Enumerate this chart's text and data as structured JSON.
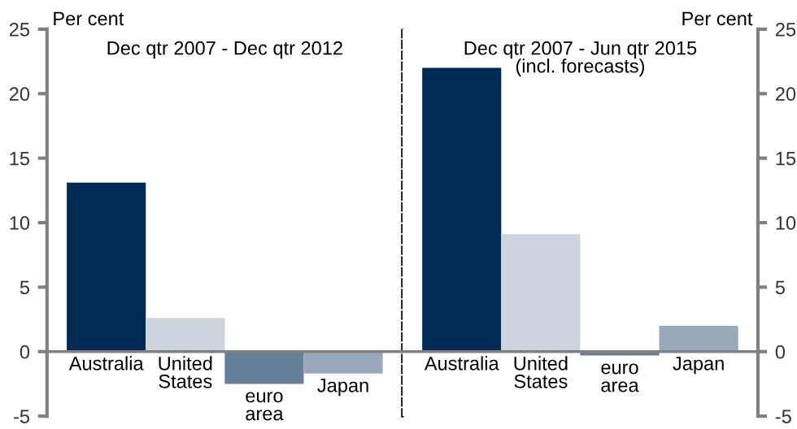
{
  "chart_data": [
    {
      "type": "bar",
      "title": "Dec qtr 2007 - Dec qtr 2012",
      "ylabel": "Per cent",
      "categories": [
        "Australia",
        "United\nStates",
        "euro\narea",
        "Japan"
      ],
      "values": [
        13.1,
        2.6,
        -2.5,
        -1.7
      ],
      "colors": [
        "#002b55",
        "#cdd4de",
        "#657f98",
        "#9aa9b9"
      ],
      "ylim": [
        -5,
        25
      ],
      "yticks": [
        -5,
        0,
        5,
        10,
        15,
        20,
        25
      ],
      "grid": false,
      "legend": false
    },
    {
      "type": "bar",
      "title": "Dec qtr 2007 - Jun qtr 2015\n(incl. forecasts)",
      "ylabel": "Per cent",
      "categories": [
        "Australia",
        "United\nStates",
        "euro\narea",
        "Japan"
      ],
      "values": [
        22.0,
        9.1,
        -0.3,
        2.0
      ],
      "colors": [
        "#002b55",
        "#cdd4de",
        "#657f98",
        "#9aa9b9"
      ],
      "ylim": [
        -5,
        25
      ],
      "yticks": [
        -5,
        0,
        5,
        10,
        15,
        20,
        25
      ],
      "grid": false,
      "legend": false
    }
  ]
}
